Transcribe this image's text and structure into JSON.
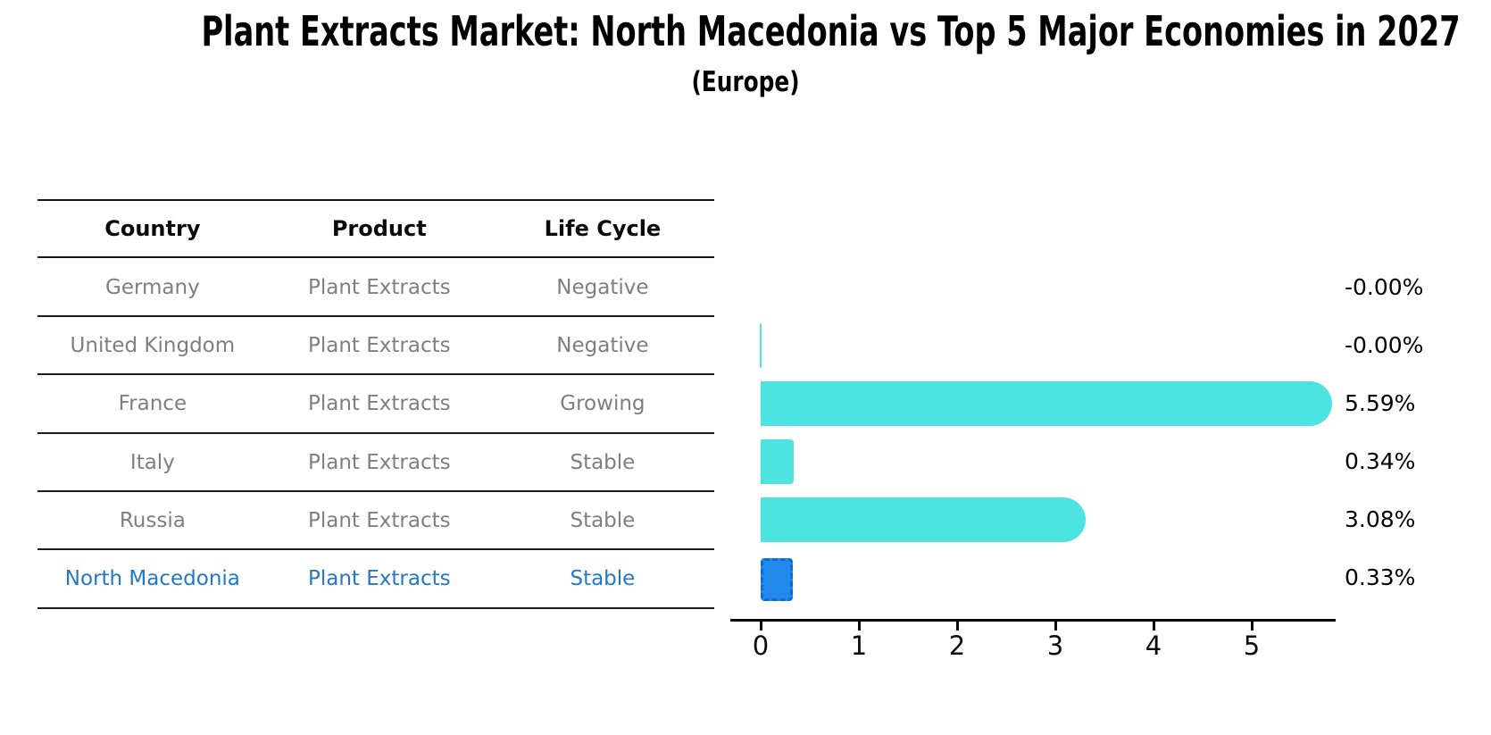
{
  "header": {
    "title": "Plant Extracts Market: North Macedonia vs Top 5 Major Economies in 2027",
    "subtitle": "(Europe)"
  },
  "table": {
    "columns": [
      "Country",
      "Product",
      "Life Cycle"
    ],
    "rows": [
      {
        "country": "Germany",
        "product": "Plant Extracts",
        "life_cycle": "Negative"
      },
      {
        "country": "United Kingdom",
        "product": "Plant Extracts",
        "life_cycle": "Negative"
      },
      {
        "country": "France",
        "product": "Plant Extracts",
        "life_cycle": "Growing"
      },
      {
        "country": "Italy",
        "product": "Plant Extracts",
        "life_cycle": "Stable"
      },
      {
        "country": "Russia",
        "product": "Plant Extracts",
        "life_cycle": "Stable"
      },
      {
        "country": "North Macedonia",
        "product": "Plant Extracts",
        "life_cycle": "Stable"
      }
    ],
    "highlight_row": "North Macedonia",
    "highlight_text_color": "#2478c8"
  },
  "chart_data": {
    "type": "bar",
    "orientation": "horizontal",
    "title": "Plant Extracts Market: North Macedonia vs Top 5 Major Economies in 2027 (Europe)",
    "categories": [
      "Germany",
      "United Kingdom",
      "France",
      "Italy",
      "Russia",
      "North Macedonia"
    ],
    "values": [
      -0.0,
      -0.0,
      5.59,
      0.34,
      3.08,
      0.33
    ],
    "value_labels": [
      "-0.00%",
      "-0.00%",
      "5.59%",
      "0.34%",
      "3.08%",
      "0.33%"
    ],
    "x_ticks": [
      "0",
      "1",
      "2",
      "3",
      "4",
      "5"
    ],
    "xlim": [
      -0.3,
      5.85
    ],
    "xlabel": "",
    "ylabel": "",
    "grid": false,
    "legend": false,
    "bar_colors": {
      "default": "#4de3e1",
      "highlight": "#2189ec"
    },
    "highlight_index": 5
  }
}
